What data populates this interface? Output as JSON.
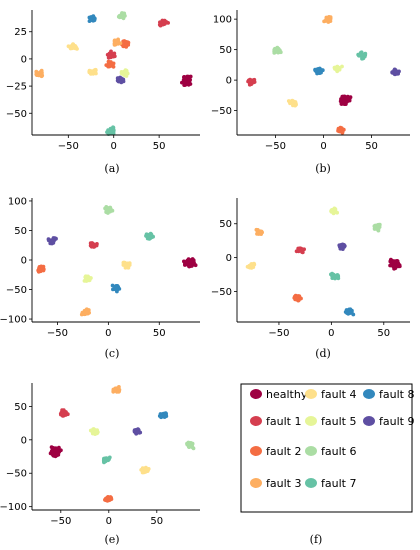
{
  "chart_data": [
    {
      "panel": "a",
      "caption": "(a)",
      "type": "scatter",
      "xlim": [
        -90,
        95
      ],
      "ylim": [
        -70,
        45
      ],
      "xticks": [
        -50,
        0,
        50
      ],
      "yticks": [
        -50,
        -25,
        0,
        25
      ],
      "grid": false,
      "clusters": [
        {
          "series": "healthy",
          "x": 80,
          "y": -20
        },
        {
          "series": "fault 1",
          "x": 55,
          "y": 33
        },
        {
          "series": "fault 1",
          "x": -3,
          "y": 4
        },
        {
          "series": "fault 2",
          "x": 12,
          "y": 13
        },
        {
          "series": "fault 2",
          "x": -4,
          "y": -5
        },
        {
          "series": "fault 3",
          "x": -82,
          "y": -14
        },
        {
          "series": "fault 3",
          "x": 3,
          "y": 15
        },
        {
          "series": "fault 4",
          "x": -45,
          "y": 11
        },
        {
          "series": "fault 4",
          "x": -23,
          "y": -12
        },
        {
          "series": "fault 5",
          "x": 12,
          "y": -13
        },
        {
          "series": "fault 6",
          "x": 10,
          "y": 40
        },
        {
          "series": "fault 7",
          "x": -3,
          "y": -66
        },
        {
          "series": "fault 8",
          "x": -24,
          "y": 37
        },
        {
          "series": "fault 9",
          "x": 7,
          "y": -19
        }
      ]
    },
    {
      "panel": "b",
      "caption": "(b)",
      "type": "scatter",
      "xlim": [
        -90,
        90
      ],
      "ylim": [
        -90,
        115
      ],
      "xticks": [
        -50,
        0,
        50
      ],
      "yticks": [
        -50,
        0,
        50,
        100
      ],
      "grid": false,
      "clusters": [
        {
          "series": "healthy",
          "x": 22,
          "y": -32
        },
        {
          "series": "fault 1",
          "x": -75,
          "y": -3
        },
        {
          "series": "fault 2",
          "x": 18,
          "y": -82
        },
        {
          "series": "fault 3",
          "x": 5,
          "y": 100
        },
        {
          "series": "fault 4",
          "x": -32,
          "y": -37
        },
        {
          "series": "fault 5",
          "x": 15,
          "y": 20
        },
        {
          "series": "fault 6",
          "x": -48,
          "y": 48
        },
        {
          "series": "fault 7",
          "x": 40,
          "y": 40
        },
        {
          "series": "fault 8",
          "x": -5,
          "y": 15
        },
        {
          "series": "fault 9",
          "x": 75,
          "y": 12
        }
      ]
    },
    {
      "panel": "c",
      "caption": "(c)",
      "type": "scatter",
      "xlim": [
        -75,
        90
      ],
      "ylim": [
        -105,
        105
      ],
      "xticks": [
        -50,
        0,
        50
      ],
      "yticks": [
        -100,
        -50,
        0,
        50,
        100
      ],
      "grid": false,
      "clusters": [
        {
          "series": "healthy",
          "x": 80,
          "y": -5
        },
        {
          "series": "fault 1",
          "x": -15,
          "y": 25
        },
        {
          "series": "fault 2",
          "x": -66,
          "y": -15
        },
        {
          "series": "fault 3",
          "x": -22,
          "y": -88
        },
        {
          "series": "fault 4",
          "x": 18,
          "y": -8
        },
        {
          "series": "fault 5",
          "x": -20,
          "y": -32
        },
        {
          "series": "fault 6",
          "x": 0,
          "y": 85
        },
        {
          "series": "fault 7",
          "x": 40,
          "y": 40
        },
        {
          "series": "fault 8",
          "x": 8,
          "y": -48
        },
        {
          "series": "fault 9",
          "x": -55,
          "y": 33
        }
      ]
    },
    {
      "panel": "d",
      "caption": "(d)",
      "type": "scatter",
      "xlim": [
        -90,
        75
      ],
      "ylim": [
        -95,
        88
      ],
      "xticks": [
        -50,
        0,
        50
      ],
      "yticks": [
        -50,
        0,
        50
      ],
      "grid": false,
      "clusters": [
        {
          "series": "healthy",
          "x": 60,
          "y": -10
        },
        {
          "series": "fault 1",
          "x": -30,
          "y": 10
        },
        {
          "series": "fault 2",
          "x": -33,
          "y": -60
        },
        {
          "series": "fault 3",
          "x": -68,
          "y": 38
        },
        {
          "series": "fault 4",
          "x": -76,
          "y": -12
        },
        {
          "series": "fault 5",
          "x": 2,
          "y": 70
        },
        {
          "series": "fault 6",
          "x": 43,
          "y": 45
        },
        {
          "series": "fault 7",
          "x": 3,
          "y": -28
        },
        {
          "series": "fault 8",
          "x": 17,
          "y": -80
        },
        {
          "series": "fault 9",
          "x": 10,
          "y": 17
        }
      ]
    },
    {
      "panel": "e",
      "caption": "(e)",
      "type": "scatter",
      "xlim": [
        -80,
        95
      ],
      "ylim": [
        -105,
        85
      ],
      "xticks": [
        -50,
        0,
        50
      ],
      "yticks": [
        -100,
        -50,
        0,
        50
      ],
      "grid": false,
      "clusters": [
        {
          "series": "healthy",
          "x": -55,
          "y": -18
        },
        {
          "series": "fault 1",
          "x": -47,
          "y": 40
        },
        {
          "series": "fault 2",
          "x": 0,
          "y": -88
        },
        {
          "series": "fault 3",
          "x": 8,
          "y": 75
        },
        {
          "series": "fault 4",
          "x": 38,
          "y": -45
        },
        {
          "series": "fault 5",
          "x": -15,
          "y": 12
        },
        {
          "series": "fault 6",
          "x": 85,
          "y": -8
        },
        {
          "series": "fault 7",
          "x": -3,
          "y": -30
        },
        {
          "series": "fault 8",
          "x": 57,
          "y": 37
        },
        {
          "series": "fault 9",
          "x": 30,
          "y": 12
        }
      ]
    }
  ],
  "legend": {
    "caption": "(f)",
    "entries": [
      {
        "label": "healthy",
        "color": "#9e0142"
      },
      {
        "label": "fault 1",
        "color": "#d53e4f"
      },
      {
        "label": "fault 2",
        "color": "#f46d43"
      },
      {
        "label": "fault 3",
        "color": "#fdae61"
      },
      {
        "label": "fault 4",
        "color": "#fee08b"
      },
      {
        "label": "fault 5",
        "color": "#e6f598"
      },
      {
        "label": "fault 6",
        "color": "#abdda4"
      },
      {
        "label": "fault 7",
        "color": "#66c2a5"
      },
      {
        "label": "fault 8",
        "color": "#3288bd"
      },
      {
        "label": "fault 9",
        "color": "#5e4fa2"
      }
    ]
  }
}
